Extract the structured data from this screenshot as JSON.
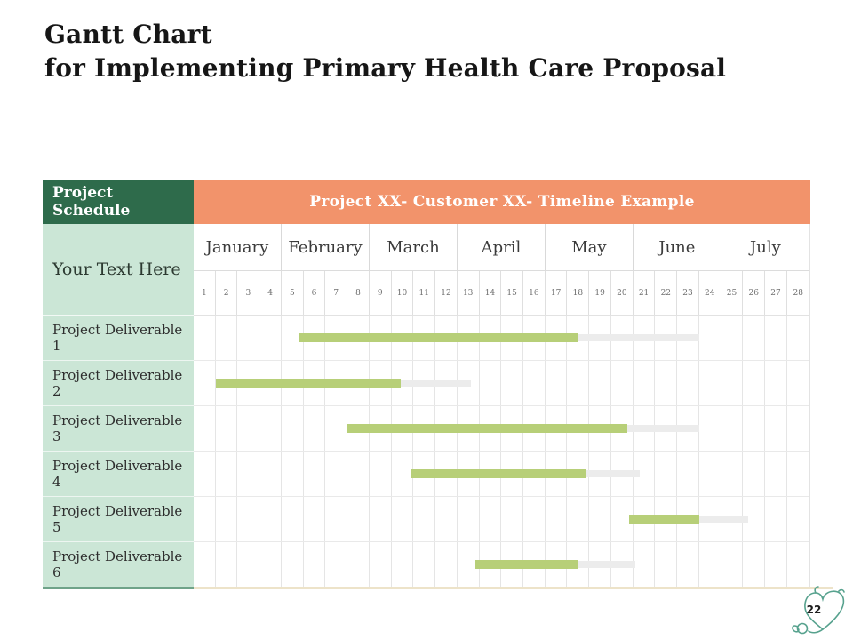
{
  "slide": {
    "title_line1": "Gantt Chart",
    "title_line2": "for Implementing Primary Health Care Proposal",
    "page_number": "22"
  },
  "colors": {
    "header_green": "#2E6B4B",
    "header_orange": "#F2936B",
    "left_column_green": "#CBE6D6",
    "bar_green": "#B7CF78",
    "bar_gray": "#ECECEC",
    "grid_line": "#DFDFDF",
    "bottom_line_tan": "#EDE3C9",
    "bottom_line_green": "#6FA389",
    "icon_teal": "#57A28E"
  },
  "table": {
    "schedule_header": "Project Schedule",
    "timeline_header": "Project XX- Customer XX- Timeline Example",
    "left_placeholder": "Your Text Here",
    "months": [
      "January",
      "February",
      "March",
      "April",
      "May",
      "June",
      "July"
    ],
    "weeks": [
      "1",
      "2",
      "3",
      "4",
      "5",
      "6",
      "7",
      "8",
      "9",
      "10",
      "11",
      "12",
      "13",
      "14",
      "15",
      "16",
      "17",
      "18",
      "19",
      "20",
      "21",
      "22",
      "23",
      "24",
      "25",
      "26",
      "27",
      "28"
    ]
  },
  "chart_data": {
    "type": "bar",
    "subtype": "gantt",
    "title": "Project XX- Customer XX- Timeline Example",
    "xlabel": "",
    "ylabel": "",
    "x_axis": {
      "unit": "weeks",
      "range": [
        1,
        28
      ],
      "months": [
        "January",
        "February",
        "March",
        "April",
        "May",
        "June",
        "July"
      ],
      "weeks_per_month": 4
    },
    "grid": true,
    "legend": false,
    "tasks": [
      {
        "name": "Project Deliverable 1",
        "start_week": 5.8,
        "end_week": 18.5,
        "extension_end_week": 24.0
      },
      {
        "name": "Project Deliverable 2",
        "start_week": 2.0,
        "end_week": 10.4,
        "extension_end_week": 13.6
      },
      {
        "name": "Project Deliverable 3",
        "start_week": 8.0,
        "end_week": 20.7,
        "extension_end_week": 24.0
      },
      {
        "name": "Project Deliverable 4",
        "start_week": 10.9,
        "end_week": 18.8,
        "extension_end_week": 21.3
      },
      {
        "name": "Project Deliverable 5",
        "start_week": 20.8,
        "end_week": 24.0,
        "extension_end_week": 26.2
      },
      {
        "name": "Project Deliverable 6",
        "start_week": 13.8,
        "end_week": 18.5,
        "extension_end_week": 21.1
      }
    ]
  }
}
